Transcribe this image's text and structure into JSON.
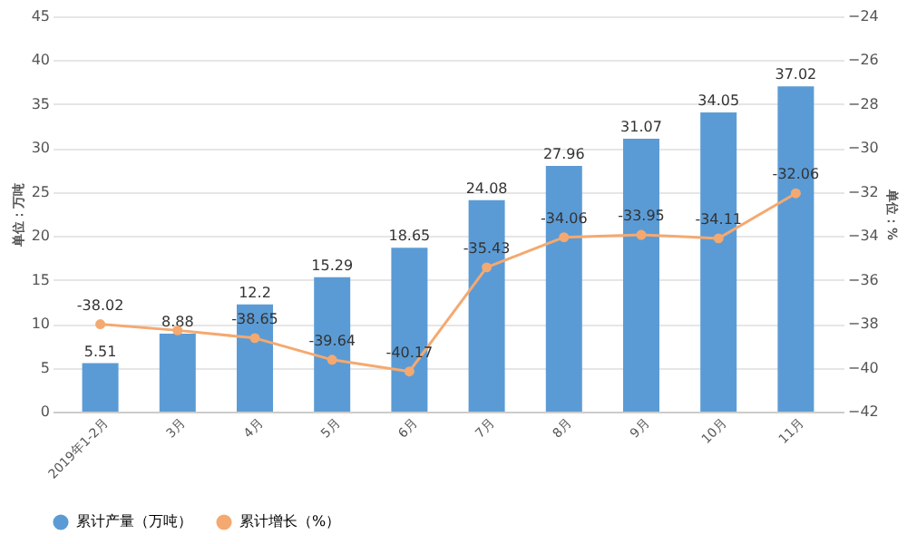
{
  "chart_data": {
    "type": "bar",
    "categories": [
      "2019年1-2月",
      "3月",
      "4月",
      "5月",
      "6月",
      "7月",
      "8月",
      "9月",
      "10月",
      "11月"
    ],
    "ylabel": "单位：万吨",
    "y2label": "单位：%",
    "ylim": [
      0,
      45
    ],
    "yticks": [
      0,
      5,
      10,
      15,
      20,
      25,
      30,
      35,
      40,
      45
    ],
    "y2lim": [
      -42,
      -24
    ],
    "y2ticks": [
      -42,
      -40,
      -38,
      -36,
      -34,
      -32,
      -30,
      -28,
      -26,
      -24
    ],
    "grid": "y",
    "legend": "bottom",
    "series": [
      {
        "name": "累计产量（万吨）",
        "color": "#5b9bd5",
        "values": [
          5.51,
          8.88,
          12.2,
          15.29,
          18.65,
          24.08,
          27.96,
          31.07,
          34.05,
          37.02
        ],
        "data_labels": true
      },
      {
        "name": "累计增长（%）",
        "type": "line",
        "axis": "y2",
        "color": "#f4a970",
        "marker": "circle",
        "values": [
          -38.02,
          -38.3,
          -38.65,
          -39.64,
          -40.17,
          -35.43,
          -34.06,
          -33.95,
          -34.11,
          -32.06
        ],
        "value_labels": [
          "-38.02",
          null,
          "-38.65",
          "-39.64",
          "-40.17",
          "-35.43",
          "-34.06",
          "-33.95",
          "-34.11",
          "-32.06"
        ]
      }
    ]
  }
}
